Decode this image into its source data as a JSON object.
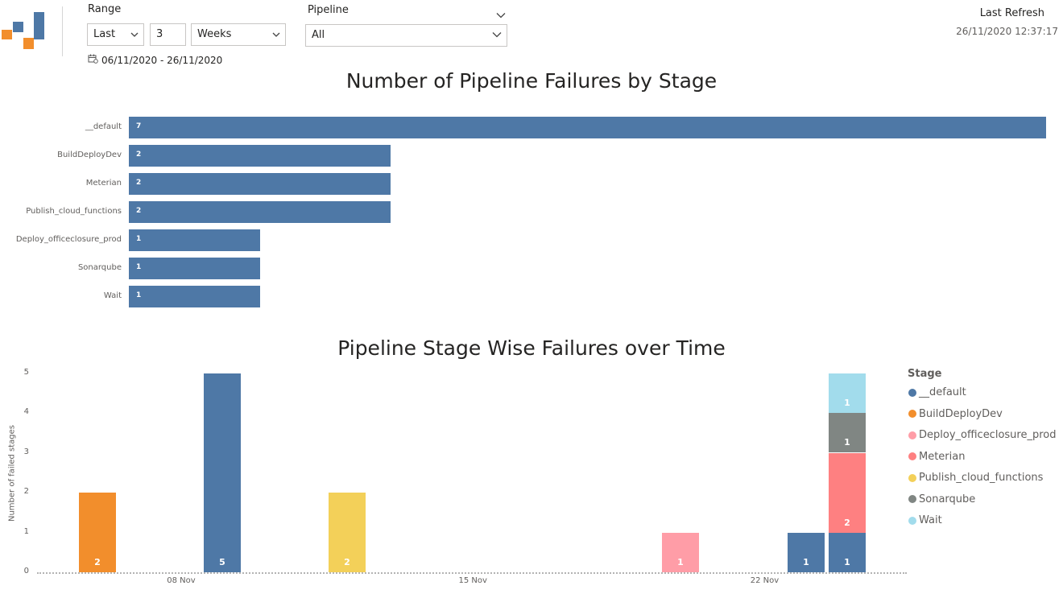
{
  "header": {
    "logo_icon": "bar-blocks-logo",
    "range_label": "Range",
    "range_mode": "Last",
    "range_count": "3",
    "range_unit": "Weeks",
    "pipeline_label": "Pipeline",
    "pipeline_value": "All",
    "date_range_icon": "calendar-icon",
    "date_range": "06/11/2020 - 26/11/2020",
    "last_refresh_label": "Last Refresh",
    "last_refresh_time": "26/11/2020 12:37:17"
  },
  "colors": {
    "__default": "#4e78a6",
    "BuildDeployDev": "#f28e2c",
    "Deploy_officeclosure_prod": "#ff9da7",
    "Meterian": "#fe8081",
    "Publish_cloud_functions": "#f3d059",
    "Sonarqube": "#808683",
    "Wait": "#a2dcec"
  },
  "chart_data": [
    {
      "type": "bar",
      "orientation": "horizontal",
      "title": "Number of Pipeline Failures by Stage",
      "categories": [
        "__default",
        "BuildDeployDev",
        "Meterian",
        "Publish_cloud_functions",
        "Deploy_officeclosure_prod",
        "Sonarqube",
        "Wait"
      ],
      "values": [
        7,
        2,
        2,
        2,
        1,
        1,
        1
      ],
      "value_labels": [
        "7",
        "2",
        "2",
        "2",
        "1",
        "1",
        "1"
      ],
      "xlim": [
        0,
        7
      ]
    },
    {
      "type": "bar",
      "stacked": true,
      "title": "Pipeline Stage Wise Failures over Time",
      "ylabel": "Number of failed stages",
      "ylim": [
        0,
        5
      ],
      "yticks": [
        "0",
        "1",
        "2",
        "3",
        "4",
        "5"
      ],
      "xticks": [
        {
          "label": "08 Nov",
          "date": "2020-11-08"
        },
        {
          "label": "15 Nov",
          "date": "2020-11-15"
        },
        {
          "label": "22 Nov",
          "date": "2020-11-22"
        }
      ],
      "xlim": [
        "2020-11-05",
        "2020-11-25"
      ],
      "legend_title": "Stage",
      "legend": [
        "__default",
        "BuildDeployDev",
        "Deploy_officeclosure_prod",
        "Meterian",
        "Publish_cloud_functions",
        "Sonarqube",
        "Wait"
      ],
      "legend_position": "right",
      "bars": [
        {
          "date": "2020-11-06",
          "segments": [
            {
              "stage": "BuildDeployDev",
              "value": 2,
              "label": "2"
            }
          ]
        },
        {
          "date": "2020-11-09",
          "segments": [
            {
              "stage": "__default",
              "value": 5,
              "label": "5"
            }
          ]
        },
        {
          "date": "2020-11-12",
          "segments": [
            {
              "stage": "Publish_cloud_functions",
              "value": 2,
              "label": "2"
            }
          ]
        },
        {
          "date": "2020-11-20",
          "segments": [
            {
              "stage": "Deploy_officeclosure_prod",
              "value": 1,
              "label": "1"
            }
          ]
        },
        {
          "date": "2020-11-23",
          "segments": [
            {
              "stage": "__default",
              "value": 1,
              "label": "1"
            }
          ]
        },
        {
          "date": "2020-11-24",
          "segments": [
            {
              "stage": "__default",
              "value": 1,
              "label": "1"
            },
            {
              "stage": "Meterian",
              "value": 2,
              "label": "2"
            },
            {
              "stage": "Sonarqube",
              "value": 1,
              "label": "1"
            },
            {
              "stage": "Wait",
              "value": 1,
              "label": "1"
            }
          ]
        }
      ]
    }
  ]
}
